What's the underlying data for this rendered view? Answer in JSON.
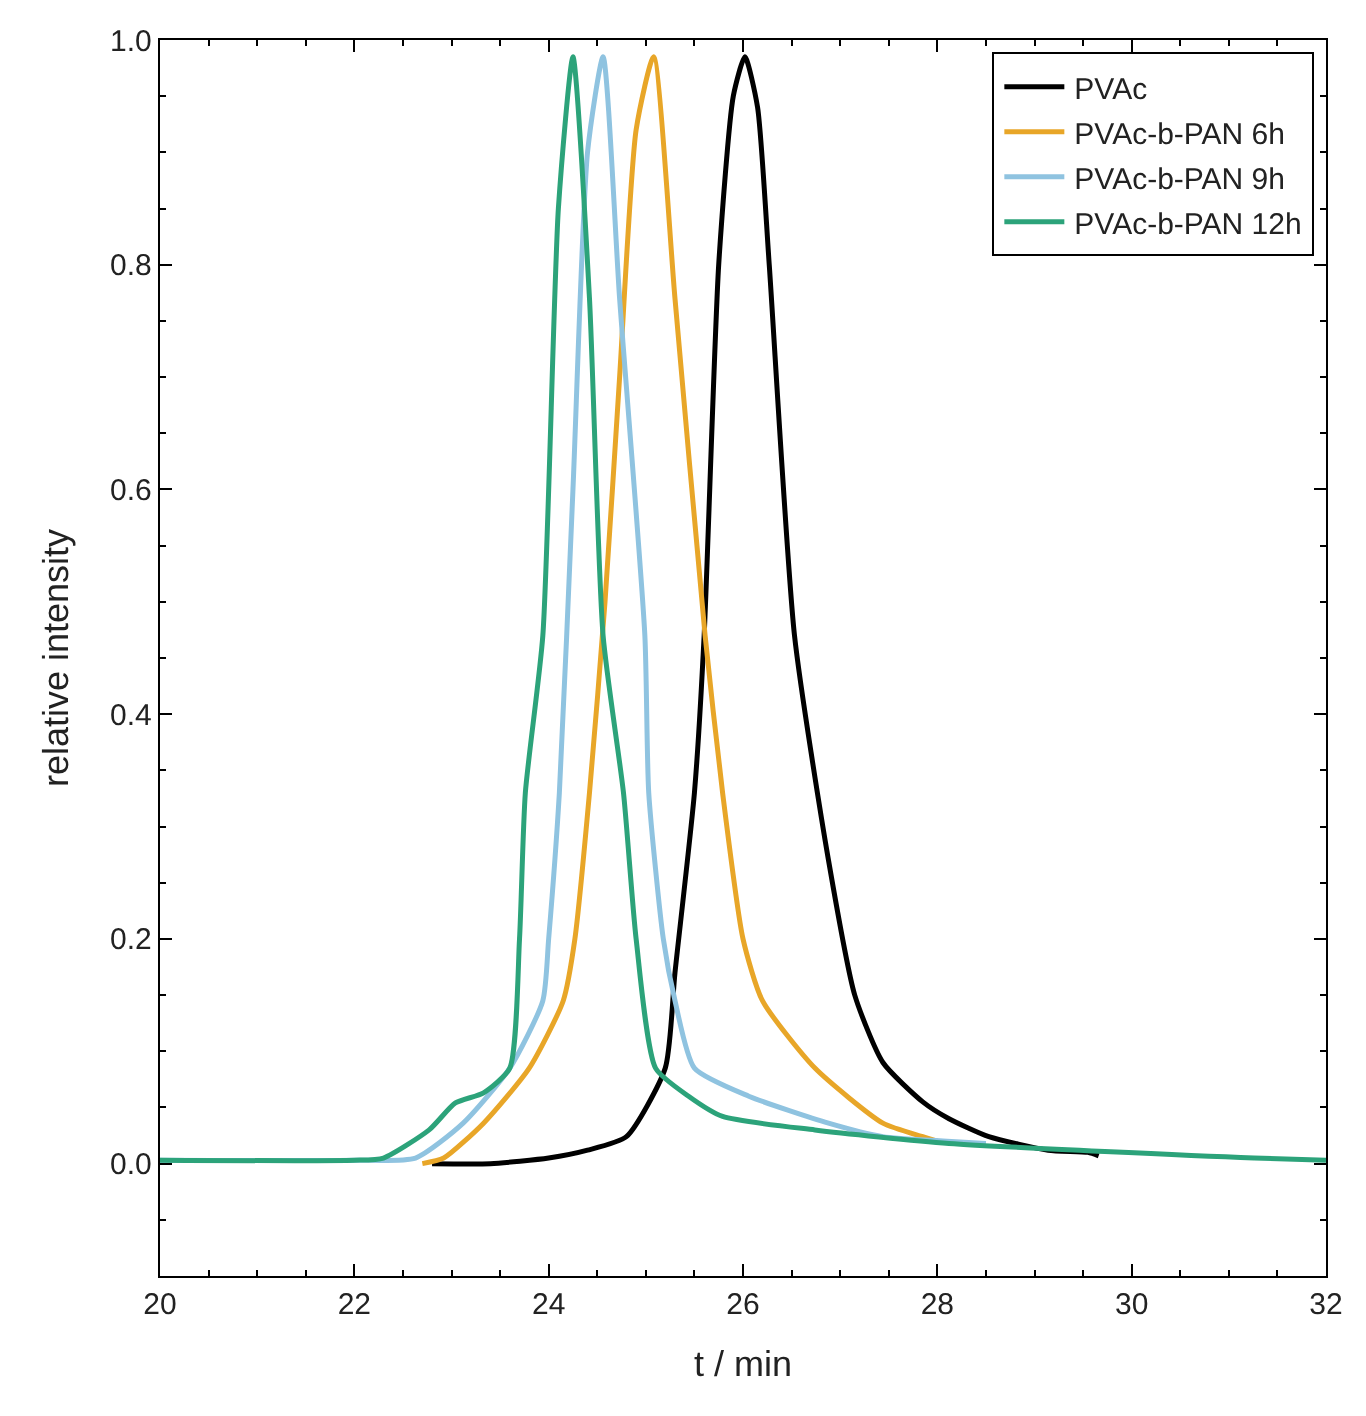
{
  "chart_data": {
    "type": "line",
    "xlabel": "t / min",
    "ylabel": "relative intensity",
    "xlim": [
      20,
      32
    ],
    "ylim": [
      -0.1,
      1.0
    ],
    "xticks": [
      20,
      22,
      24,
      26,
      28,
      30,
      32
    ],
    "yticks": [
      {
        "value": 0,
        "label": "0.0"
      },
      {
        "value": 0.2,
        "label": "0.2"
      },
      {
        "value": 0.4,
        "label": "0.4"
      },
      {
        "value": 0.6,
        "label": "0.6"
      },
      {
        "value": 0.8,
        "label": "0.8"
      },
      {
        "value": 1,
        "label": "1.0"
      }
    ],
    "legend": "top right",
    "line_style": "solid",
    "marker": "none",
    "series": [
      {
        "name": "PVAc",
        "color": "#000000",
        "x": [
          22.8,
          23.4,
          24.0,
          24.4,
          24.8,
          25.2,
          25.3,
          25.5,
          25.6,
          25.75,
          25.9,
          26.02,
          26.15,
          26.27,
          26.53,
          26.88,
          27.15,
          27.44,
          27.85,
          28.12,
          28.53,
          29.14,
          29.55,
          29.66
        ],
        "values": [
          0.0,
          0.0,
          0.005,
          0.012,
          0.024,
          0.085,
          0.17,
          0.33,
          0.47,
          0.8,
          0.95,
          0.985,
          0.94,
          0.8,
          0.47,
          0.27,
          0.15,
          0.09,
          0.055,
          0.04,
          0.024,
          0.012,
          0.01,
          0.007
        ]
      },
      {
        "name": "PVAc-b-PAN 6h",
        "color": "#e8a628",
        "x": [
          22.7,
          22.92,
          23.33,
          23.8,
          24.15,
          24.27,
          24.42,
          24.58,
          24.73,
          24.9,
          25.08,
          25.3,
          25.61,
          25.79,
          26.0,
          26.2,
          26.74,
          27.44,
          27.85,
          28.0
        ],
        "values": [
          0.0,
          0.005,
          0.036,
          0.085,
          0.145,
          0.2,
          0.33,
          0.5,
          0.7,
          0.92,
          0.985,
          0.77,
          0.47,
          0.33,
          0.2,
          0.145,
          0.085,
          0.036,
          0.024,
          0.02
        ]
      },
      {
        "name": "PVAc-b-PAN 9h",
        "color": "#8fc3e0",
        "x": [
          20.0,
          22.0,
          22.63,
          23.12,
          23.6,
          23.94,
          24.0,
          24.11,
          24.25,
          24.4,
          24.56,
          24.73,
          24.99,
          25.03,
          25.18,
          25.3,
          25.5,
          26.06,
          26.88,
          27.44,
          28.1,
          28.5
        ],
        "values": [
          0.003,
          0.003,
          0.005,
          0.036,
          0.085,
          0.145,
          0.2,
          0.33,
          0.6,
          0.9,
          0.985,
          0.77,
          0.47,
          0.33,
          0.2,
          0.145,
          0.085,
          0.06,
          0.036,
          0.024,
          0.02,
          0.018
        ]
      },
      {
        "name": "PVAc-b-PAN 12h",
        "color": "#2ca37a",
        "x": [
          20.0,
          22.0,
          22.3,
          22.77,
          23.04,
          23.33,
          23.6,
          23.7,
          23.76,
          23.94,
          24.1,
          24.25,
          24.42,
          24.56,
          24.77,
          24.9,
          25.1,
          25.44,
          25.79,
          26.74,
          28.12,
          31.26,
          32.0
        ],
        "values": [
          0.003,
          0.003,
          0.005,
          0.03,
          0.054,
          0.063,
          0.085,
          0.2,
          0.33,
          0.47,
          0.85,
          0.985,
          0.77,
          0.47,
          0.33,
          0.2,
          0.085,
          0.06,
          0.042,
          0.03,
          0.018,
          0.005,
          0.003
        ]
      }
    ]
  }
}
